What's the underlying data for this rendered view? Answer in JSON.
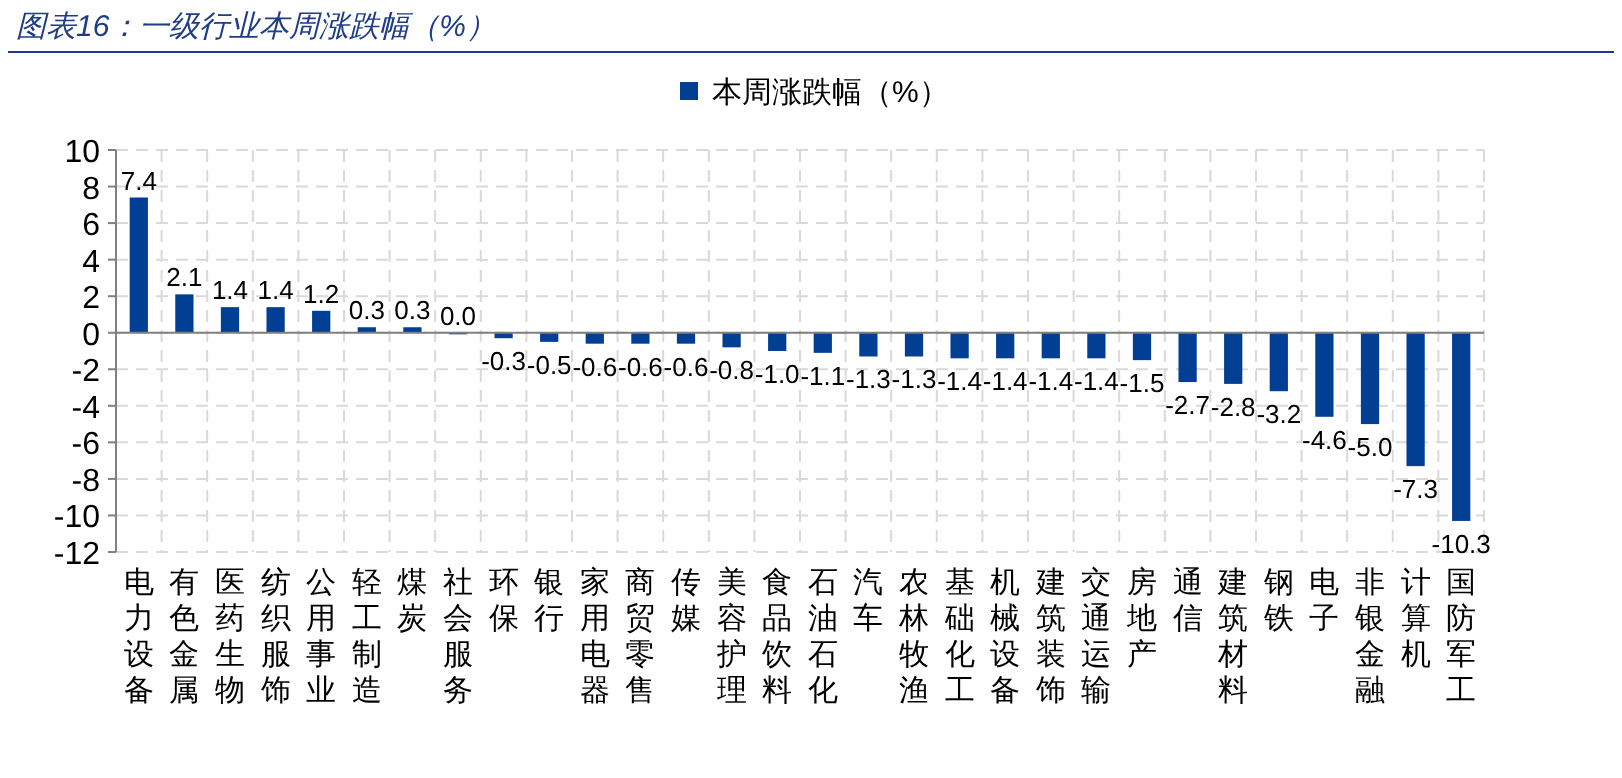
{
  "chart_data": {
    "type": "bar",
    "title": "图表16：一级行业本周涨跌幅（%）",
    "categories": [
      "电力设备",
      "有色金属",
      "医药生物",
      "纺织服饰",
      "公用事业",
      "轻工制造",
      "煤炭",
      "社会服务",
      "环保",
      "银行",
      "家用电器",
      "商贸零售",
      "传媒",
      "美容护理",
      "食品饮料",
      "石油石化",
      "汽车",
      "农林牧渔",
      "基础化工",
      "机械设备",
      "建筑装饰",
      "交通运输",
      "房地产",
      "通信",
      "建筑材料",
      "钢铁",
      "电子",
      "非银金融",
      "计算机",
      "国防军工"
    ],
    "series": [
      {
        "name": "本周涨跌幅（%）",
        "color": "#003f93",
        "values": [
          7.4,
          2.1,
          1.4,
          1.4,
          1.2,
          0.3,
          0.3,
          0.0,
          -0.3,
          -0.5,
          -0.6,
          -0.6,
          -0.6,
          -0.8,
          -1.0,
          -1.1,
          -1.3,
          -1.3,
          -1.4,
          -1.4,
          -1.4,
          -1.4,
          -1.5,
          -2.7,
          -2.8,
          -3.2,
          -4.6,
          -5.0,
          -7.3,
          -10.3
        ],
        "value_labels": [
          "7.4",
          "2.1",
          "1.4",
          "1.4",
          "1.2",
          "0.3",
          "0.3",
          "0.0",
          "-0.3",
          "-0.5",
          "-0.6",
          "-0.6",
          "-0.6",
          "-0.8",
          "-1.0",
          "-1.1",
          "-1.3",
          "-1.3",
          "-1.4",
          "-1.4",
          "-1.4",
          "-1.4",
          "-1.5",
          "-2.7",
          "-2.8",
          "-3.2",
          "-4.6",
          "-5.0",
          "-7.3",
          "-10.3"
        ]
      }
    ],
    "ylim": [
      -12,
      10
    ],
    "yticks": [
      -12,
      -10,
      -8,
      -6,
      -4,
      -2,
      0,
      2,
      4,
      6,
      8,
      10
    ],
    "grid": true,
    "legend": "top"
  }
}
